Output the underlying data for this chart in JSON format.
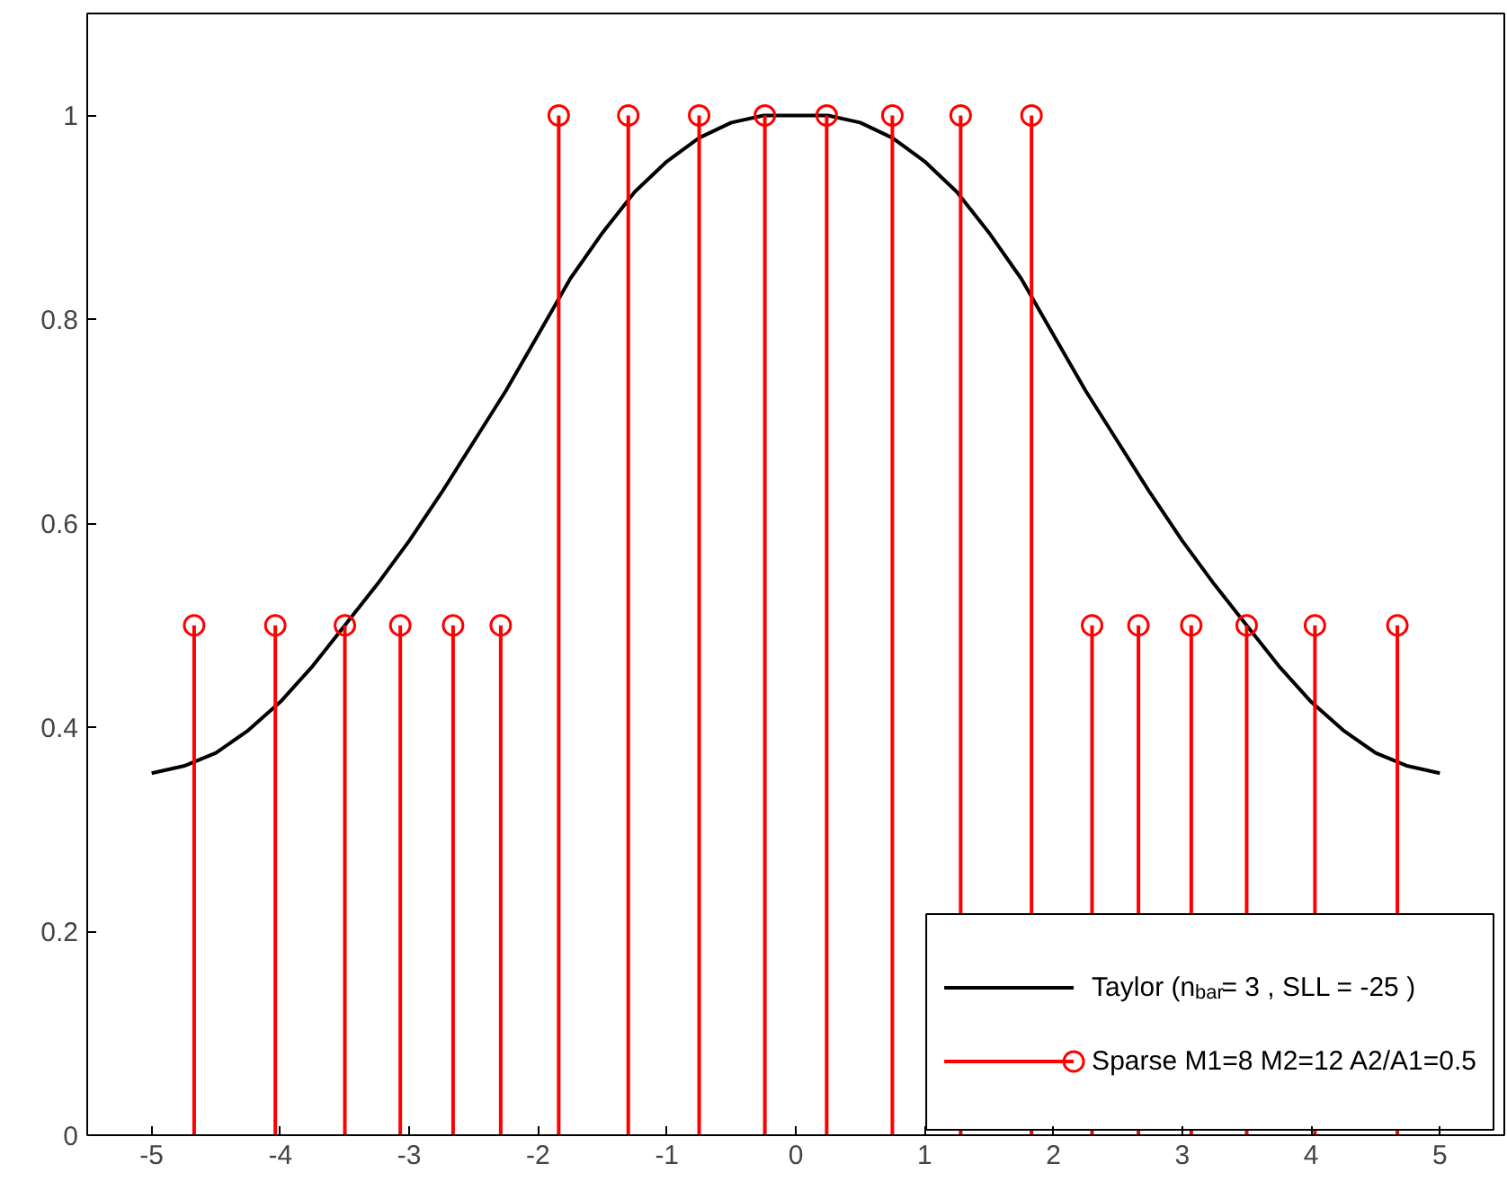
{
  "chart_data": {
    "type": "lollipop",
    "xlim": [
      -5.5,
      5.5
    ],
    "xticks": [
      -5,
      -4,
      -3,
      -2,
      -1,
      0,
      1,
      2,
      3,
      4,
      5
    ],
    "ylim": [
      0,
      1.1
    ],
    "yticks": [
      0,
      0.2,
      0.4,
      0.6,
      0.8,
      1
    ],
    "grid": false,
    "legend": "bottom right",
    "series": [
      {
        "name": "Taylor (n$_{bar}$= 3 , SLL = -25 )",
        "type": "line",
        "color": "#000000",
        "marker": "none",
        "line_style": "solid",
        "x": [
          -5,
          -4.75,
          -4.5,
          -4.25,
          -4,
          -3.75,
          -3.5,
          -3.25,
          -3,
          -2.75,
          -2.5,
          -2.25,
          -2,
          -1.75,
          -1.5,
          -1.25,
          -1,
          -0.75,
          -0.5,
          -0.25,
          0,
          0.25,
          0.5,
          0.75,
          1,
          1.25,
          1.5,
          1.75,
          2,
          2.25,
          2.5,
          2.75,
          3,
          3.25,
          3.5,
          3.75,
          4,
          4.25,
          4.5,
          4.75,
          5
        ],
        "values": [
          0.355,
          0.362,
          0.375,
          0.397,
          0.425,
          0.46,
          0.5,
          0.54,
          0.583,
          0.63,
          0.68,
          0.73,
          0.785,
          0.84,
          0.885,
          0.925,
          0.955,
          0.978,
          0.993,
          1.0,
          1.0,
          1.0,
          0.993,
          0.978,
          0.955,
          0.925,
          0.885,
          0.84,
          0.785,
          0.73,
          0.68,
          0.63,
          0.583,
          0.54,
          0.5,
          0.46,
          0.425,
          0.397,
          0.375,
          0.362,
          0.355
        ]
      },
      {
        "name": "Sparse M1=8 M2=12 A2/A1=0.5",
        "color": "#ff0000",
        "marker": "circle",
        "x": [
          -4.67,
          -4.04,
          -3.5,
          -3.07,
          -2.66,
          -2.29,
          -1.84,
          -1.3,
          -0.75,
          -0.24,
          0.24,
          0.75,
          1.28,
          1.83,
          2.3,
          2.66,
          3.07,
          3.5,
          4.03,
          4.67
        ],
        "values": [
          0.5,
          0.5,
          0.5,
          0.5,
          0.5,
          0.5,
          1,
          1,
          1,
          1,
          1,
          1,
          1,
          1,
          0.5,
          0.5,
          0.5,
          0.5,
          0.5,
          0.5
        ]
      }
    ]
  }
}
